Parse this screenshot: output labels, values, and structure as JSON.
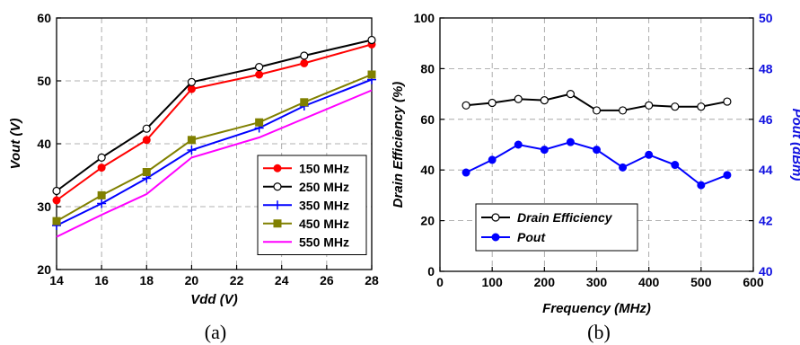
{
  "chart_data": [
    {
      "type": "line",
      "panel_label": "(a)",
      "xlabel": "Vdd (V)",
      "ylabel": "Vout (V)",
      "xlim": [
        14,
        28
      ],
      "ylim": [
        20,
        60
      ],
      "xticks": [
        "14",
        "16",
        "18",
        "20",
        "22",
        "24",
        "26",
        "28"
      ],
      "yticks": [
        "20",
        "30",
        "40",
        "50",
        "60"
      ],
      "grid": true,
      "legend_position": "bottom-right",
      "x": [
        14,
        16,
        18,
        20,
        23,
        25,
        28
      ],
      "series": [
        {
          "name": "150 MHz",
          "color": "#ff0000",
          "marker": "filled-circle",
          "values": [
            31.0,
            36.2,
            40.6,
            48.7,
            51.0,
            52.8,
            55.8
          ]
        },
        {
          "name": "250 MHz",
          "color": "#000000",
          "marker": "open-circle",
          "values": [
            32.5,
            37.8,
            42.4,
            49.8,
            52.2,
            54.0,
            56.5
          ]
        },
        {
          "name": "350 MHz",
          "color": "#0000ff",
          "marker": "plus",
          "values": [
            27.0,
            30.5,
            34.5,
            39.0,
            42.5,
            46.0,
            50.2
          ]
        },
        {
          "name": "450 MHz",
          "color": "#808000",
          "marker": "filled-square",
          "values": [
            27.7,
            31.8,
            35.5,
            40.6,
            43.4,
            46.6,
            51.0
          ]
        },
        {
          "name": "550 MHz",
          "color": "#ff00ff",
          "marker": "none",
          "values": [
            25.2,
            28.7,
            32.0,
            37.8,
            41.0,
            44.0,
            48.5
          ]
        }
      ]
    },
    {
      "type": "line",
      "panel_label": "(b)",
      "xlabel": "Frequency (MHz)",
      "ylabel": "Drain Efficiency (%)",
      "ylabel_right": "Pout (dBm)",
      "xlim": [
        0,
        600
      ],
      "ylim": [
        0,
        100
      ],
      "ylim_right": [
        40,
        50
      ],
      "xticks": [
        "0",
        "100",
        "200",
        "300",
        "400",
        "500",
        "600"
      ],
      "yticks": [
        "0",
        "20",
        "40",
        "60",
        "80",
        "100"
      ],
      "yticks_right": [
        "40",
        "42",
        "44",
        "46",
        "48",
        "50"
      ],
      "grid": true,
      "legend_position": "bottom-left",
      "x": [
        50,
        100,
        150,
        200,
        250,
        300,
        350,
        400,
        450,
        500,
        550
      ],
      "series": [
        {
          "name": "Drain Efficiency",
          "color": "#000000",
          "marker": "open-circle",
          "axis": "left",
          "values": [
            65.5,
            66.5,
            68.0,
            67.5,
            70.0,
            63.5,
            63.5,
            65.5,
            65.0,
            65.0,
            67.0
          ]
        },
        {
          "name": "Pout",
          "color": "#0000ff",
          "marker": "filled-circle",
          "axis": "right",
          "values": [
            43.9,
            44.4,
            45.0,
            44.8,
            45.1,
            44.8,
            44.1,
            44.6,
            44.2,
            43.4,
            43.8
          ]
        }
      ]
    }
  ]
}
